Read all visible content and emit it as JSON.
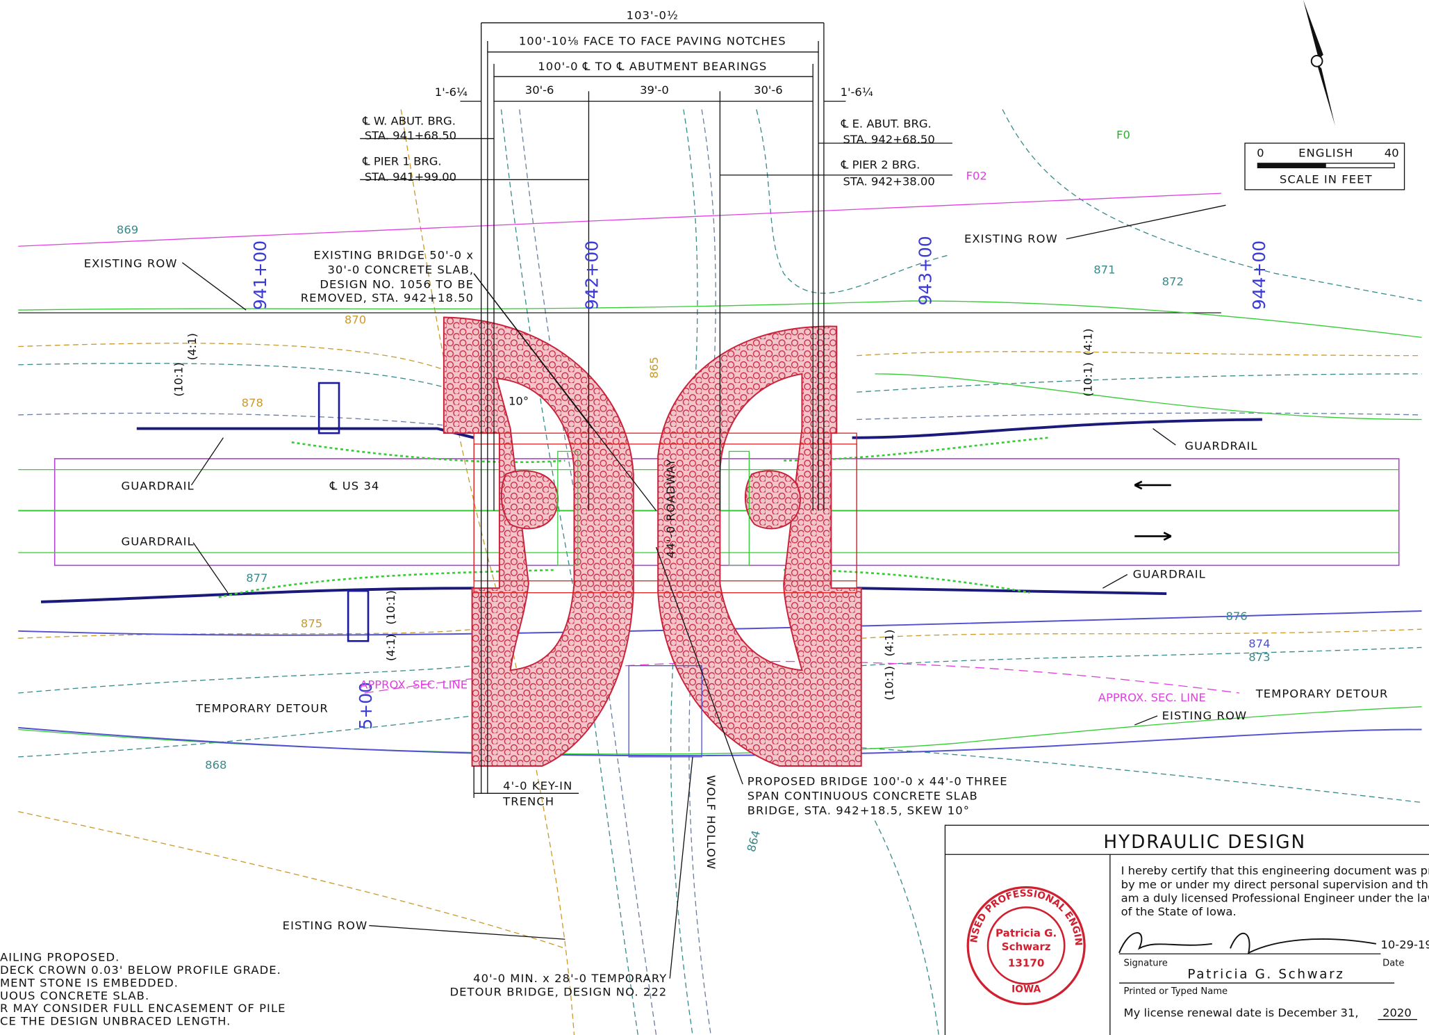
{
  "dimensions": {
    "overall": "103'-0½",
    "paving": "100'-10⅛ FACE TO FACE PAVING NOTCHES",
    "bearings": "100'-0 ℄ TO ℄ ABUTMENT BEARINGS",
    "left_offset": "1'-6¼",
    "right_offset": "1'-6¼",
    "spans": [
      "30'-6",
      "39'-0",
      "30'-6"
    ]
  },
  "bearing_labels": [
    {
      "title": "℄ W. ABUT. BRG.",
      "station": "STA. 941+68.50"
    },
    {
      "title": "℄ PIER 1 BRG.",
      "station": "STA. 941+99.00"
    },
    {
      "title": "℄ E. ABUT. BRG.",
      "station": "STA. 942+68.50"
    },
    {
      "title": "℄ PIER 2 BRG.",
      "station": "STA. 942+38.00"
    }
  ],
  "scale": {
    "start": "0",
    "units": "ENGLISH",
    "end": "40",
    "caption": "SCALE IN FEET"
  },
  "stations": [
    "941+00",
    "942+00",
    "943+00",
    "944+00",
    "5+00"
  ],
  "callouts": {
    "existing_row": [
      "EXISTING ROW",
      "EXISTING ROW"
    ],
    "existing_bridge": [
      "EXISTING BRIDGE 50'-0 x",
      "30'-0 CONCRETE SLAB,",
      "DESIGN NO. 1056 TO BE",
      "REMOVED, STA. 942+18.50"
    ],
    "guardrail": [
      "GUARDRAIL",
      "GUARDRAIL",
      "GUARDRAIL",
      "GUARDRAIL"
    ],
    "centerline": "℄ US 34",
    "roadway": "44'-0 ROADWAY",
    "skew": "10°",
    "slopes": [
      "(10:1)",
      "(4:1)",
      "(10:1)",
      "(4:1)",
      "(4:1)",
      "(10:1)",
      "(10:1)",
      "(4:1)"
    ],
    "temporary_detour": [
      "TEMPORARY DETOUR",
      "TEMPORARY DETOUR"
    ],
    "sec_line": [
      "APPROX. SEC. LINE",
      "APPROX. SEC. LINE"
    ],
    "eisting_row": [
      "EISTING ROW",
      "EISTING ROW"
    ],
    "key_in": [
      "4'-0 KEY-IN",
      "TRENCH"
    ],
    "proposed_bridge": [
      "PROPOSED BRIDGE 100'-0 x 44'-0 THREE",
      "SPAN CONTINUOUS CONCRETE SLAB",
      "BRIDGE, STA. 942+18.5, SKEW 10°"
    ],
    "stream": "WOLF HOLLOW",
    "detour_bridge": [
      "40'-0 MIN. x 28'-0 TEMPORARY",
      "DETOUR BRIDGE, DESIGN NO. 222"
    ]
  },
  "contours": [
    "869",
    "870",
    "878",
    "872",
    "865",
    "875",
    "877",
    "876",
    "874",
    "873",
    "871",
    "864",
    "868",
    "F0",
    "F02"
  ],
  "notes": [
    "AILING PROPOSED.",
    "DECK CROWN 0.03' BELOW PROFILE GRADE.",
    "MENT STONE IS EMBEDDED.",
    "UOUS CONCRETE SLAB.",
    "R MAY CONSIDER FULL ENCASEMENT OF PILE",
    "CE THE DESIGN UNBRACED LENGTH."
  ],
  "title_block": {
    "title": "HYDRAULIC DESIGN",
    "certification": [
      "I hereby certify that this engineering document was prepa",
      "by me or under my direct personal supervision and tha",
      "am a duly licensed Professional Engineer under the laws",
      "of the State of Iowa."
    ],
    "seal": {
      "ring": "LICENSED PROFESSIONAL ENGINEER",
      "name": [
        "Patricia G.",
        "Schwarz"
      ],
      "number": "13170",
      "state": "IOWA"
    },
    "signature_label": "Signature",
    "date_label": "Date",
    "date": "10-29-19",
    "name": "Patricia G. Schwarz",
    "name_label": "Printed or Typed Name",
    "renewal": "My license renewal date is December 31,",
    "renewal_year": "2020"
  }
}
